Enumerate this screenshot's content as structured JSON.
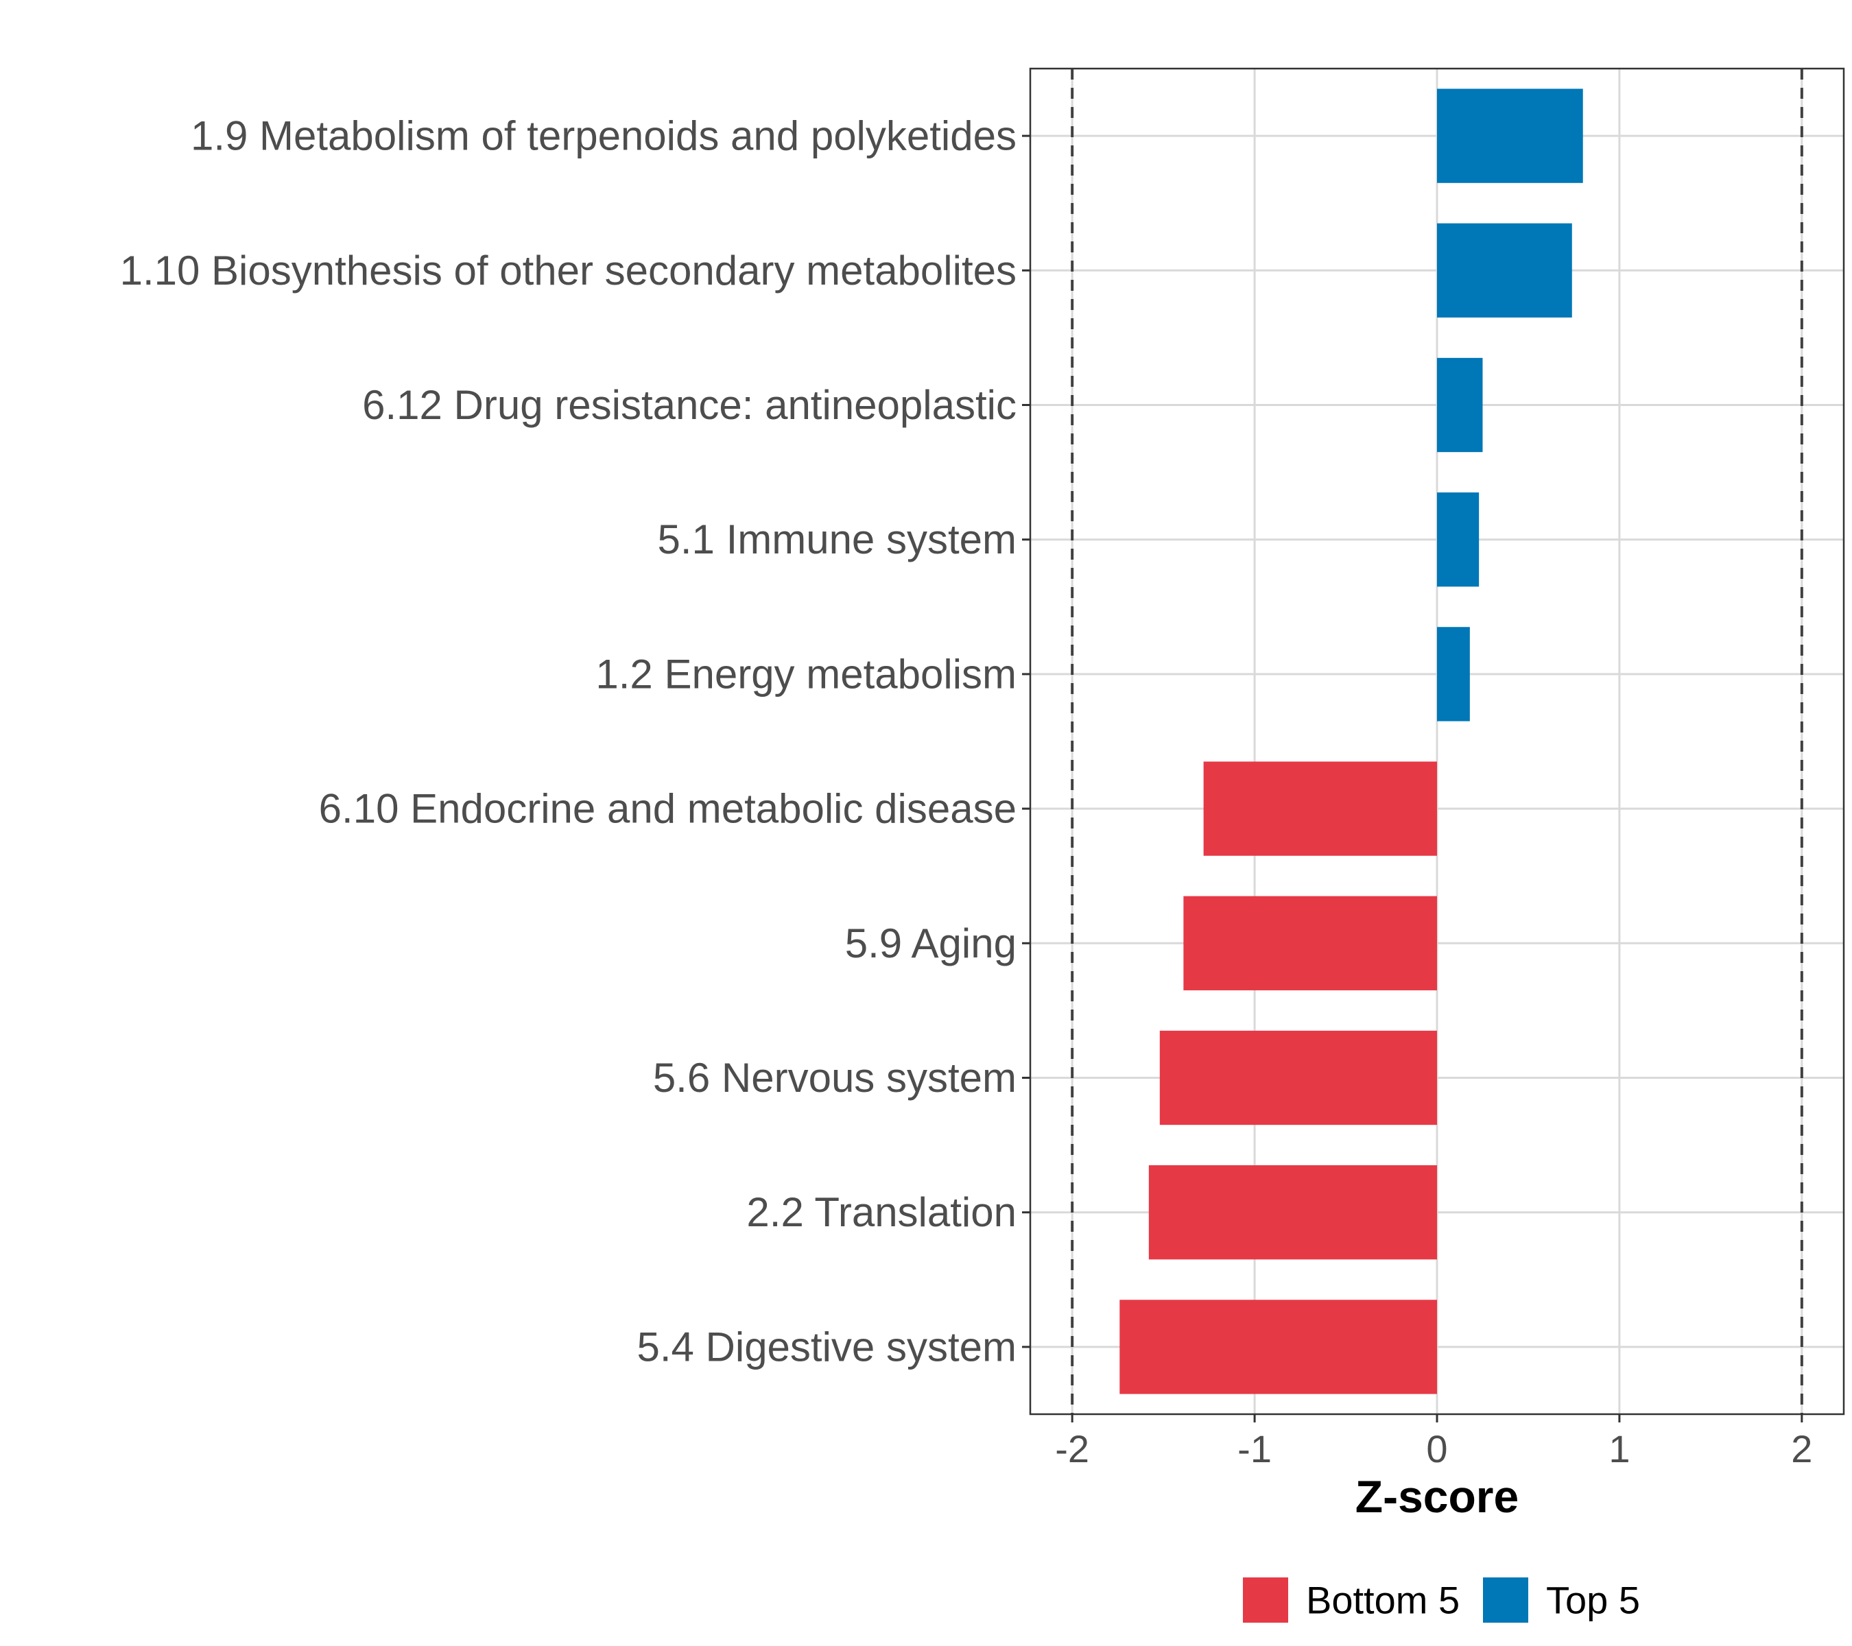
{
  "chart_data": {
    "type": "bar",
    "orientation": "horizontal",
    "title": "",
    "xlabel": "Z-score",
    "ylabel": "",
    "xlim": [
      -2.23,
      2.23
    ],
    "x_ticks": [
      -2,
      -1,
      0,
      1,
      2
    ],
    "reference_lines": [
      -2,
      2
    ],
    "grid": true,
    "legend_position": "bottom",
    "categories": [
      "1.9 Metabolism of terpenoids and polyketides",
      "1.10 Biosynthesis of other secondary metabolites",
      "6.12 Drug resistance: antineoplastic",
      "5.1 Immune system",
      "1.2 Energy metabolism",
      "6.10 Endocrine and metabolic disease",
      "5.9 Aging",
      "5.6 Nervous system",
      "2.2 Translation",
      "5.4 Digestive system"
    ],
    "values": [
      0.8,
      0.74,
      0.25,
      0.23,
      0.18,
      -1.28,
      -1.39,
      -1.52,
      -1.58,
      -1.74
    ],
    "groups": [
      "Top 5",
      "Top 5",
      "Top 5",
      "Top 5",
      "Top 5",
      "Bottom 5",
      "Bottom 5",
      "Bottom 5",
      "Bottom 5",
      "Bottom 5"
    ],
    "legend": [
      {
        "name": "Bottom 5",
        "color": "#E63946"
      },
      {
        "name": "Top 5",
        "color": "#0077B6"
      }
    ]
  }
}
